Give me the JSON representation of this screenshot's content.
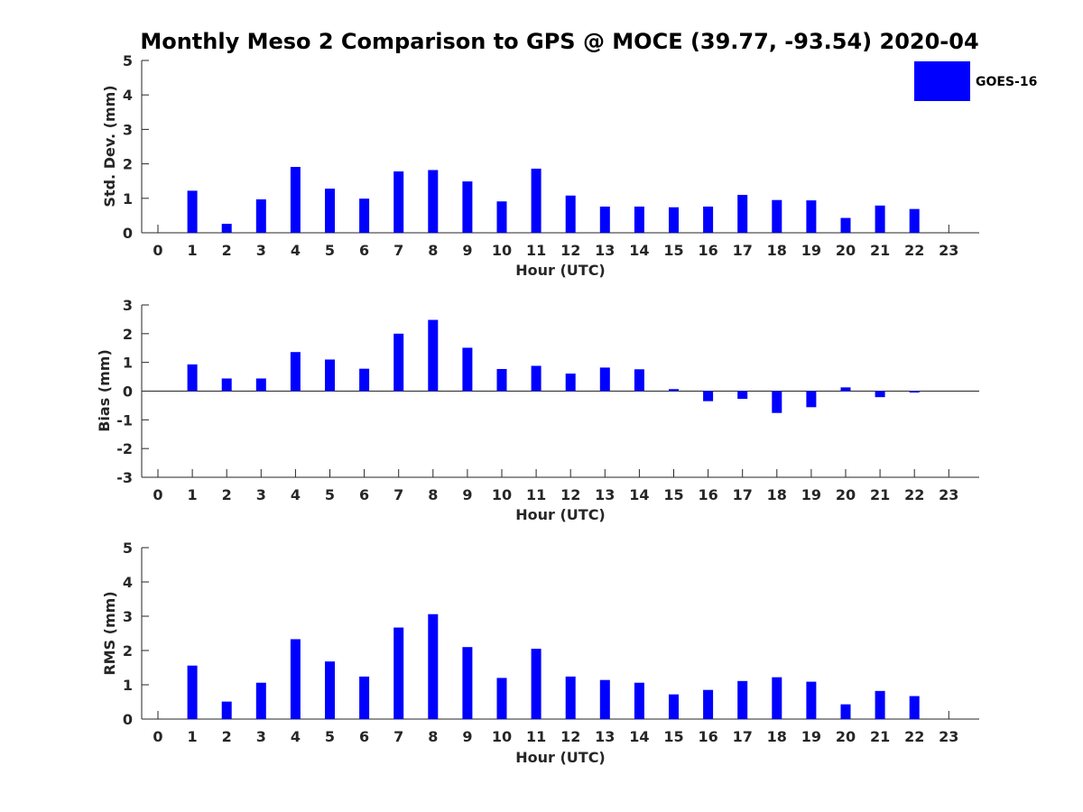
{
  "figure": {
    "title": "Monthly Meso 2 Comparison to GPS @ MOCE (39.77, -93.54) 2020-04",
    "bar_color": "#0000ff",
    "legend": {
      "label": "GOES-16",
      "placement": "top-right"
    }
  },
  "chart_data": [
    {
      "type": "bar",
      "ylabel": "Std. Dev. (mm)",
      "xlabel": "Hour (UTC)",
      "x": [
        0,
        1,
        2,
        3,
        4,
        5,
        6,
        7,
        8,
        9,
        10,
        11,
        12,
        13,
        14,
        15,
        16,
        17,
        18,
        19,
        20,
        21,
        22,
        23
      ],
      "ylim": [
        0,
        5
      ],
      "yticks": [
        0,
        1,
        2,
        3,
        4,
        5
      ],
      "series": [
        {
          "name": "GOES-16",
          "values": [
            null,
            1.22,
            0.26,
            0.97,
            1.91,
            1.28,
            0.99,
            1.78,
            1.82,
            1.49,
            0.91,
            1.86,
            1.08,
            0.76,
            0.76,
            0.74,
            0.76,
            1.1,
            0.95,
            0.94,
            0.43,
            0.79,
            0.69,
            null
          ]
        }
      ]
    },
    {
      "type": "bar",
      "ylabel": "Bias (mm)",
      "xlabel": "Hour (UTC)",
      "x": [
        0,
        1,
        2,
        3,
        4,
        5,
        6,
        7,
        8,
        9,
        10,
        11,
        12,
        13,
        14,
        15,
        16,
        17,
        18,
        19,
        20,
        21,
        22,
        23
      ],
      "ylim": [
        -3,
        3
      ],
      "yticks": [
        -3,
        -2,
        -1,
        0,
        1,
        2,
        3
      ],
      "series": [
        {
          "name": "GOES-16",
          "values": [
            null,
            0.93,
            0.44,
            0.44,
            1.36,
            1.1,
            0.78,
            2.0,
            2.48,
            1.51,
            0.77,
            0.88,
            0.61,
            0.82,
            0.76,
            0.07,
            -0.35,
            -0.27,
            -0.76,
            -0.56,
            0.13,
            -0.21,
            -0.05,
            null
          ]
        }
      ]
    },
    {
      "type": "bar",
      "ylabel": "RMS (mm)",
      "xlabel": "Hour (UTC)",
      "x": [
        0,
        1,
        2,
        3,
        4,
        5,
        6,
        7,
        8,
        9,
        10,
        11,
        12,
        13,
        14,
        15,
        16,
        17,
        18,
        19,
        20,
        21,
        22,
        23
      ],
      "ylim": [
        0,
        5
      ],
      "yticks": [
        0,
        1,
        2,
        3,
        4,
        5
      ],
      "series": [
        {
          "name": "GOES-16",
          "values": [
            null,
            1.56,
            0.51,
            1.06,
            2.33,
            1.68,
            1.24,
            2.67,
            3.06,
            2.1,
            1.2,
            2.05,
            1.24,
            1.14,
            1.06,
            0.72,
            0.85,
            1.11,
            1.22,
            1.09,
            0.43,
            0.82,
            0.67,
            null
          ]
        }
      ]
    }
  ]
}
